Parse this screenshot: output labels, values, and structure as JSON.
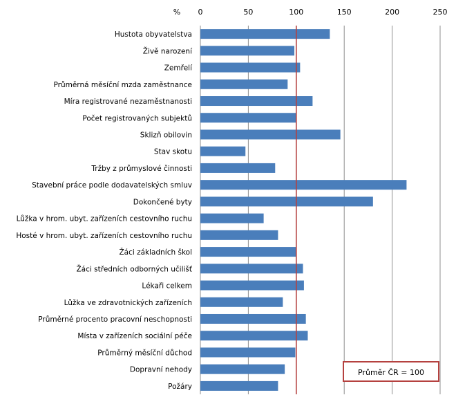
{
  "chart_data": {
    "type": "bar",
    "orientation": "horizontal",
    "unit_label": "%",
    "categories": [
      "Hustota obyvatelstva",
      "Živě narození",
      "Zemřelí",
      "Průměrná měsíční mzda zaměstnance",
      "Míra registrované nezaměstnanosti",
      "Počet registrovaných subjektů",
      "Sklizň obilovin",
      "Stav skotu",
      "Tržby z průmyslové činnosti",
      "Stavební práce podle dodavatelských smluv",
      "Dokončené byty",
      "Lůžka v hrom. ubyt. zařízeních cestovního ruchu",
      "Hosté v hrom. ubyt. zařízeních cestovního ruchu",
      "Žáci základních škol",
      "Žáci středních odborných učilišť",
      "Lékaři celkem",
      "Lůžka ve zdravotnických zařízeních",
      "Průměrné procento pracovní neschopnosti",
      "Místa v zařízeních sociální péče",
      "Průměrný měsíční důchod",
      "Dopravní nehody",
      "Požáry"
    ],
    "values": [
      135,
      98,
      104,
      91,
      117,
      100,
      146,
      47,
      78,
      215,
      180,
      66,
      81,
      100,
      107,
      108,
      86,
      110,
      112,
      99,
      88,
      81
    ],
    "xlim": [
      0,
      250
    ],
    "ticks": [
      0,
      50,
      100,
      150,
      200,
      250
    ],
    "reference_line": {
      "value": 100,
      "label": "Průměr ČR = 100",
      "color": "#b5413f"
    },
    "grid": true,
    "bar_color": "#4a7ebb",
    "grid_color": "#8c8c8c"
  }
}
